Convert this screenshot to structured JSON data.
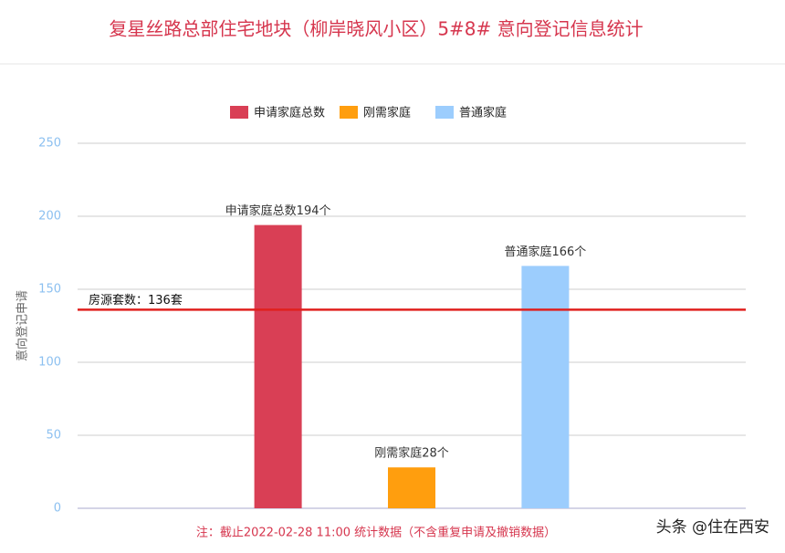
{
  "chart_data": {
    "type": "bar",
    "title": "复星丝路总部住宅地块（柳岸晓风小区）5#8# 意向登记信息统计",
    "y_label": "意向登记申请",
    "categories": [
      null,
      null,
      null,
      null,
      null
    ],
    "series": [
      {
        "name": "申请家庭总数",
        "color": "#d93f55",
        "values": [
          null,
          194,
          null,
          null,
          null
        ],
        "value_labels": [
          null,
          "申请家庭总数194个",
          null,
          null,
          null
        ]
      },
      {
        "name": "刚需家庭",
        "color": "#ff9e0e",
        "values": [
          null,
          null,
          28,
          null,
          null
        ],
        "value_labels": [
          null,
          null,
          "刚需家庭28个",
          null,
          null
        ]
      },
      {
        "name": "普通家庭",
        "color": "#9ccdfd",
        "values": [
          null,
          null,
          null,
          166,
          null
        ],
        "value_labels": [
          null,
          null,
          null,
          "普通家庭166个",
          null
        ]
      }
    ],
    "ylim": [
      0,
      250
    ],
    "yticks": [
      0,
      50,
      100,
      150,
      200,
      250
    ],
    "grid": true,
    "reference_line": {
      "value": 136,
      "label": "房源套数：136套",
      "color": "#e0201e"
    },
    "note": "注：截止2022-02-28 11:00 统计数据（不含重复申请及撤销数据）",
    "watermark": "头条 @住在西安"
  }
}
